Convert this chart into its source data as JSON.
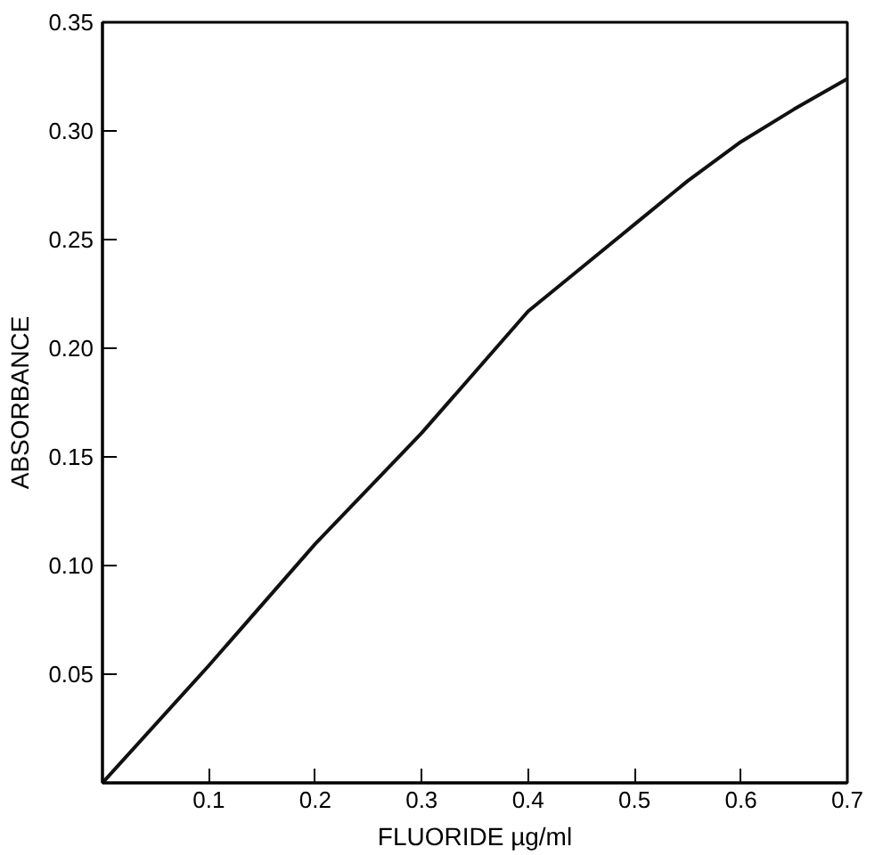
{
  "chart_data": {
    "type": "line",
    "xlabel": "FLUORIDE µg/ml",
    "ylabel": "ABSORBANCE",
    "x": [
      0,
      0.1,
      0.2,
      0.3,
      0.4,
      0.45,
      0.5,
      0.55,
      0.6,
      0.65,
      0.7
    ],
    "series": [
      {
        "color": "#111111",
        "values": [
          0,
          0.054,
          0.11,
          0.161,
          0.217,
          0.237,
          0.257,
          0.277,
          0.295,
          0.31,
          0.324
        ]
      }
    ],
    "xlim": [
      0,
      0.7
    ],
    "ylim": [
      0,
      0.35
    ],
    "xticks": [
      0.1,
      0.2,
      0.3,
      0.4,
      0.5,
      0.6,
      0.7
    ],
    "yticks": [
      0.05,
      {
        "value": 0.1,
        "label": "0.10"
      },
      0.15,
      {
        "value": 0.2,
        "label": "0.20"
      },
      0.25,
      {
        "value": 0.3,
        "label": "0.30"
      },
      0.35
    ],
    "grid": false,
    "marker": "none",
    "line_style": "solid"
  }
}
